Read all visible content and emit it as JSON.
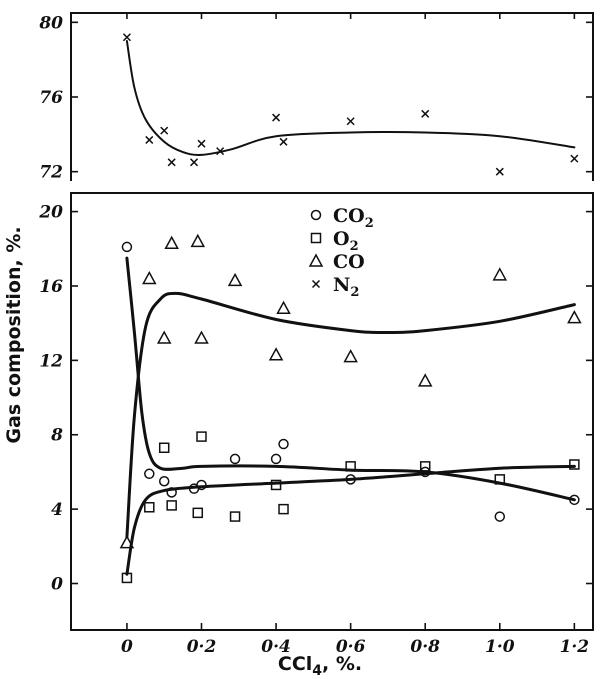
{
  "chart_data": [
    {
      "type": "scatter",
      "panel": "upper",
      "ylim": [
        71.5,
        80.5
      ],
      "yticks": [
        72,
        76,
        80
      ],
      "series": [
        {
          "name": "N2",
          "marker": "x",
          "points": [
            [
              0,
              79.2
            ],
            [
              0.06,
              73.7
            ],
            [
              0.1,
              74.2
            ],
            [
              0.12,
              72.5
            ],
            [
              0.18,
              72.5
            ],
            [
              0.2,
              73.5
            ],
            [
              0.25,
              73.1
            ],
            [
              0.4,
              74.9
            ],
            [
              0.42,
              73.6
            ],
            [
              0.6,
              74.7
            ],
            [
              0.8,
              75.1
            ],
            [
              1.0,
              72.0
            ],
            [
              1.2,
              72.7
            ]
          ],
          "curve": [
            [
              0,
              79.0
            ],
            [
              0.02,
              76.5
            ],
            [
              0.05,
              74.8
            ],
            [
              0.1,
              73.6
            ],
            [
              0.15,
              73.05
            ],
            [
              0.2,
              72.9
            ],
            [
              0.28,
              73.2
            ],
            [
              0.4,
              73.9
            ],
            [
              0.6,
              74.1
            ],
            [
              0.8,
              74.1
            ],
            [
              1.0,
              73.9
            ],
            [
              1.2,
              73.3
            ]
          ]
        }
      ]
    },
    {
      "type": "scatter",
      "panel": "lower",
      "xlim": [
        -0.15,
        1.25
      ],
      "ylim": [
        -2.5,
        21
      ],
      "xticks": [
        0,
        0.2,
        0.4,
        0.6,
        0.8,
        1.0,
        1.2
      ],
      "yticks": [
        0,
        4,
        8,
        12,
        16,
        20
      ],
      "series": [
        {
          "name": "CO2",
          "marker": "circle",
          "points": [
            [
              0,
              18.1
            ],
            [
              0.06,
              5.9
            ],
            [
              0.1,
              5.5
            ],
            [
              0.12,
              4.9
            ],
            [
              0.18,
              5.1
            ],
            [
              0.2,
              5.3
            ],
            [
              0.29,
              6.7
            ],
            [
              0.4,
              6.7
            ],
            [
              0.42,
              7.5
            ],
            [
              0.6,
              5.6
            ],
            [
              0.8,
              6.0
            ],
            [
              1.0,
              3.6
            ],
            [
              1.2,
              4.5
            ]
          ],
          "curve": [
            [
              0,
              17.5
            ],
            [
              0.02,
              13.5
            ],
            [
              0.04,
              9.2
            ],
            [
              0.06,
              7.0
            ],
            [
              0.09,
              6.2
            ],
            [
              0.15,
              6.2
            ],
            [
              0.2,
              6.3
            ],
            [
              0.4,
              6.3
            ],
            [
              0.6,
              6.1
            ],
            [
              0.8,
              6.0
            ],
            [
              1.0,
              5.4
            ],
            [
              1.2,
              4.5
            ]
          ]
        },
        {
          "name": "O2",
          "marker": "square",
          "points": [
            [
              0,
              0.3
            ],
            [
              0.06,
              4.1
            ],
            [
              0.1,
              7.3
            ],
            [
              0.12,
              4.2
            ],
            [
              0.19,
              3.8
            ],
            [
              0.2,
              7.9
            ],
            [
              0.29,
              3.6
            ],
            [
              0.4,
              5.3
            ],
            [
              0.42,
              4.0
            ],
            [
              0.6,
              6.3
            ],
            [
              0.8,
              6.3
            ],
            [
              1.0,
              5.6
            ],
            [
              1.2,
              6.4
            ]
          ],
          "curve": [
            [
              0,
              0.5
            ],
            [
              0.02,
              3.0
            ],
            [
              0.05,
              4.5
            ],
            [
              0.1,
              5.0
            ],
            [
              0.2,
              5.2
            ],
            [
              0.4,
              5.4
            ],
            [
              0.6,
              5.6
            ],
            [
              0.8,
              5.9
            ],
            [
              1.0,
              6.2
            ],
            [
              1.2,
              6.3
            ]
          ]
        },
        {
          "name": "CO",
          "marker": "triangle",
          "points": [
            [
              0,
              2.2
            ],
            [
              0.06,
              16.4
            ],
            [
              0.1,
              13.2
            ],
            [
              0.12,
              18.3
            ],
            [
              0.19,
              18.4
            ],
            [
              0.2,
              13.2
            ],
            [
              0.29,
              16.3
            ],
            [
              0.4,
              12.3
            ],
            [
              0.42,
              14.8
            ],
            [
              0.6,
              12.2
            ],
            [
              0.8,
              10.9
            ],
            [
              1.0,
              16.6
            ],
            [
              1.2,
              14.3
            ]
          ],
          "curve": [
            [
              0,
              2.5
            ],
            [
              0.02,
              9.0
            ],
            [
              0.05,
              13.8
            ],
            [
              0.09,
              15.3
            ],
            [
              0.13,
              15.6
            ],
            [
              0.2,
              15.3
            ],
            [
              0.4,
              14.2
            ],
            [
              0.6,
              13.6
            ],
            [
              0.7,
              13.5
            ],
            [
              0.8,
              13.6
            ],
            [
              1.0,
              14.1
            ],
            [
              1.2,
              15.0
            ]
          ]
        }
      ]
    }
  ],
  "axes": {
    "xlabel": "CCl",
    "xlabel_sub": "4",
    "xlabel_suffix": ", %.",
    "ylabel": "Gas composition, %.",
    "xtick_labels": [
      "0",
      "0·2",
      "0·4",
      "0·6",
      "0·8",
      "1·0",
      "1·2"
    ],
    "upper_ytick_labels": [
      "72",
      "76",
      "80"
    ],
    "lower_ytick_labels": [
      "0",
      "4",
      "8",
      "12",
      "16",
      "20"
    ]
  },
  "legend": {
    "placement": "upper-center",
    "items": [
      {
        "marker": "circle",
        "label": "CO",
        "sub": "2"
      },
      {
        "marker": "square",
        "label": "O",
        "sub": "2"
      },
      {
        "marker": "triangle",
        "label": "CO",
        "sub": ""
      },
      {
        "marker": "x",
        "label": "N",
        "sub": "2"
      }
    ]
  }
}
